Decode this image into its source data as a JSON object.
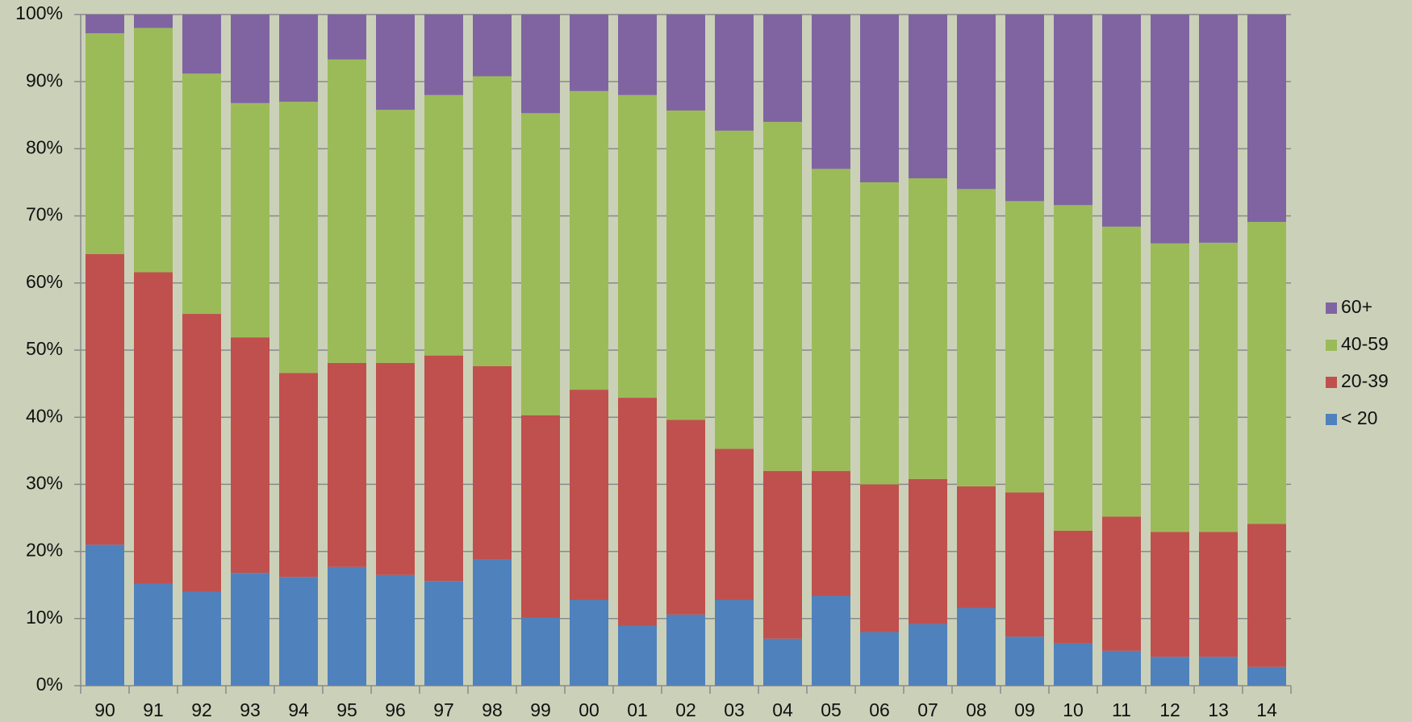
{
  "chart_data": {
    "type": "stacked_bar",
    "categories": [
      "90",
      "91",
      "92",
      "93",
      "94",
      "95",
      "96",
      "97",
      "98",
      "99",
      "00",
      "01",
      "02",
      "03",
      "04",
      "05",
      "06",
      "07",
      "08",
      "09",
      "10",
      "11",
      "12",
      "13",
      "14"
    ],
    "series": [
      {
        "name": "< 20",
        "color": "#4f81bd",
        "values": [
          21,
          15.2,
          14,
          16.8,
          16.2,
          17.7,
          16.5,
          15.6,
          18.8,
          10.1,
          12.8,
          8.9,
          10.6,
          12.8,
          7,
          13.4,
          8,
          9.2,
          11.6,
          7.3,
          6.3,
          5.2,
          4.3,
          4.3,
          2.8
        ]
      },
      {
        "name": "20-39",
        "color": "#c0504d",
        "values": [
          43.3,
          46.4,
          41.4,
          35.1,
          30.4,
          30.4,
          31.6,
          33.6,
          28.8,
          30.2,
          31.3,
          34,
          29,
          22.5,
          25,
          18.6,
          22,
          21.6,
          18.1,
          21.5,
          16.8,
          20,
          18.6,
          18.6,
          21.3
        ]
      },
      {
        "name": "40-59",
        "color": "#9bbb59",
        "values": [
          32.9,
          36.4,
          35.8,
          34.9,
          40.4,
          45.2,
          37.7,
          38.8,
          43.2,
          45,
          44.5,
          45.1,
          46.1,
          47.4,
          52,
          45,
          45,
          44.8,
          44.3,
          43.4,
          48.5,
          43.2,
          43,
          43.1,
          45
        ]
      },
      {
        "name": "60+",
        "color": "#8064a2",
        "values": [
          2.8,
          2,
          8.8,
          13.2,
          13,
          6.7,
          14.2,
          12,
          9.2,
          14.7,
          11.4,
          12,
          14.3,
          17.3,
          16,
          23,
          25,
          24.4,
          26,
          27.8,
          28.4,
          31.6,
          34.1,
          34,
          30.9
        ]
      }
    ],
    "ylim": [
      0,
      100
    ],
    "yticks": [
      {
        "value": 0,
        "label": "0%"
      },
      {
        "value": 10,
        "label": "10%"
      },
      {
        "value": 20,
        "label": "20%"
      },
      {
        "value": 30,
        "label": "30%"
      },
      {
        "value": 40,
        "label": "40%"
      },
      {
        "value": 50,
        "label": "50%"
      },
      {
        "value": 60,
        "label": "60%"
      },
      {
        "value": 70,
        "label": "70%"
      },
      {
        "value": 80,
        "label": "80%"
      },
      {
        "value": 90,
        "label": "90%"
      },
      {
        "value": 100,
        "label": "100%"
      }
    ],
    "grid": true,
    "legend": "right"
  }
}
